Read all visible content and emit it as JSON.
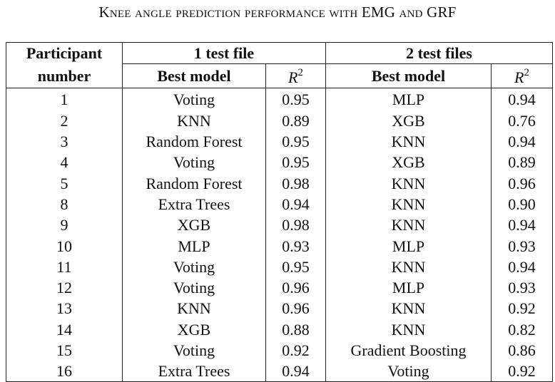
{
  "caption": "Knee angle prediction performance with EMG and GRF",
  "headers": {
    "participant_line1": "Participant",
    "participant_line2": "number",
    "group1": "1 test file",
    "group2": "2 test files",
    "best_model": "Best model",
    "r2_symbol": "R",
    "r2_exponent": "2"
  },
  "rows": [
    {
      "participant": "1",
      "model1": "Voting",
      "r2_1": "0.95",
      "model2": "MLP",
      "r2_2": "0.94"
    },
    {
      "participant": "2",
      "model1": "KNN",
      "r2_1": "0.89",
      "model2": "XGB",
      "r2_2": "0.76"
    },
    {
      "participant": "3",
      "model1": "Random Forest",
      "r2_1": "0.95",
      "model2": "KNN",
      "r2_2": "0.94"
    },
    {
      "participant": "4",
      "model1": "Voting",
      "r2_1": "0.95",
      "model2": "XGB",
      "r2_2": "0.89"
    },
    {
      "participant": "5",
      "model1": "Random Forest",
      "r2_1": "0.98",
      "model2": "KNN",
      "r2_2": "0.96"
    },
    {
      "participant": "8",
      "model1": "Extra Trees",
      "r2_1": "0.94",
      "model2": "KNN",
      "r2_2": "0.90"
    },
    {
      "participant": "9",
      "model1": "XGB",
      "r2_1": "0.98",
      "model2": "KNN",
      "r2_2": "0.94"
    },
    {
      "participant": "10",
      "model1": "MLP",
      "r2_1": "0.93",
      "model2": "MLP",
      "r2_2": "0.93"
    },
    {
      "participant": "11",
      "model1": "Voting",
      "r2_1": "0.95",
      "model2": "KNN",
      "r2_2": "0.94"
    },
    {
      "participant": "12",
      "model1": "Voting",
      "r2_1": "0.96",
      "model2": "MLP",
      "r2_2": "0.93"
    },
    {
      "participant": "13",
      "model1": "KNN",
      "r2_1": "0.96",
      "model2": "KNN",
      "r2_2": "0.92"
    },
    {
      "participant": "14",
      "model1": "XGB",
      "r2_1": "0.88",
      "model2": "KNN",
      "r2_2": "0.82"
    },
    {
      "participant": "15",
      "model1": "Voting",
      "r2_1": "0.92",
      "model2": "Gradient Boosting",
      "r2_2": "0.86"
    },
    {
      "participant": "16",
      "model1": "Extra Trees",
      "r2_1": "0.94",
      "model2": "Voting",
      "r2_2": "0.92"
    }
  ]
}
